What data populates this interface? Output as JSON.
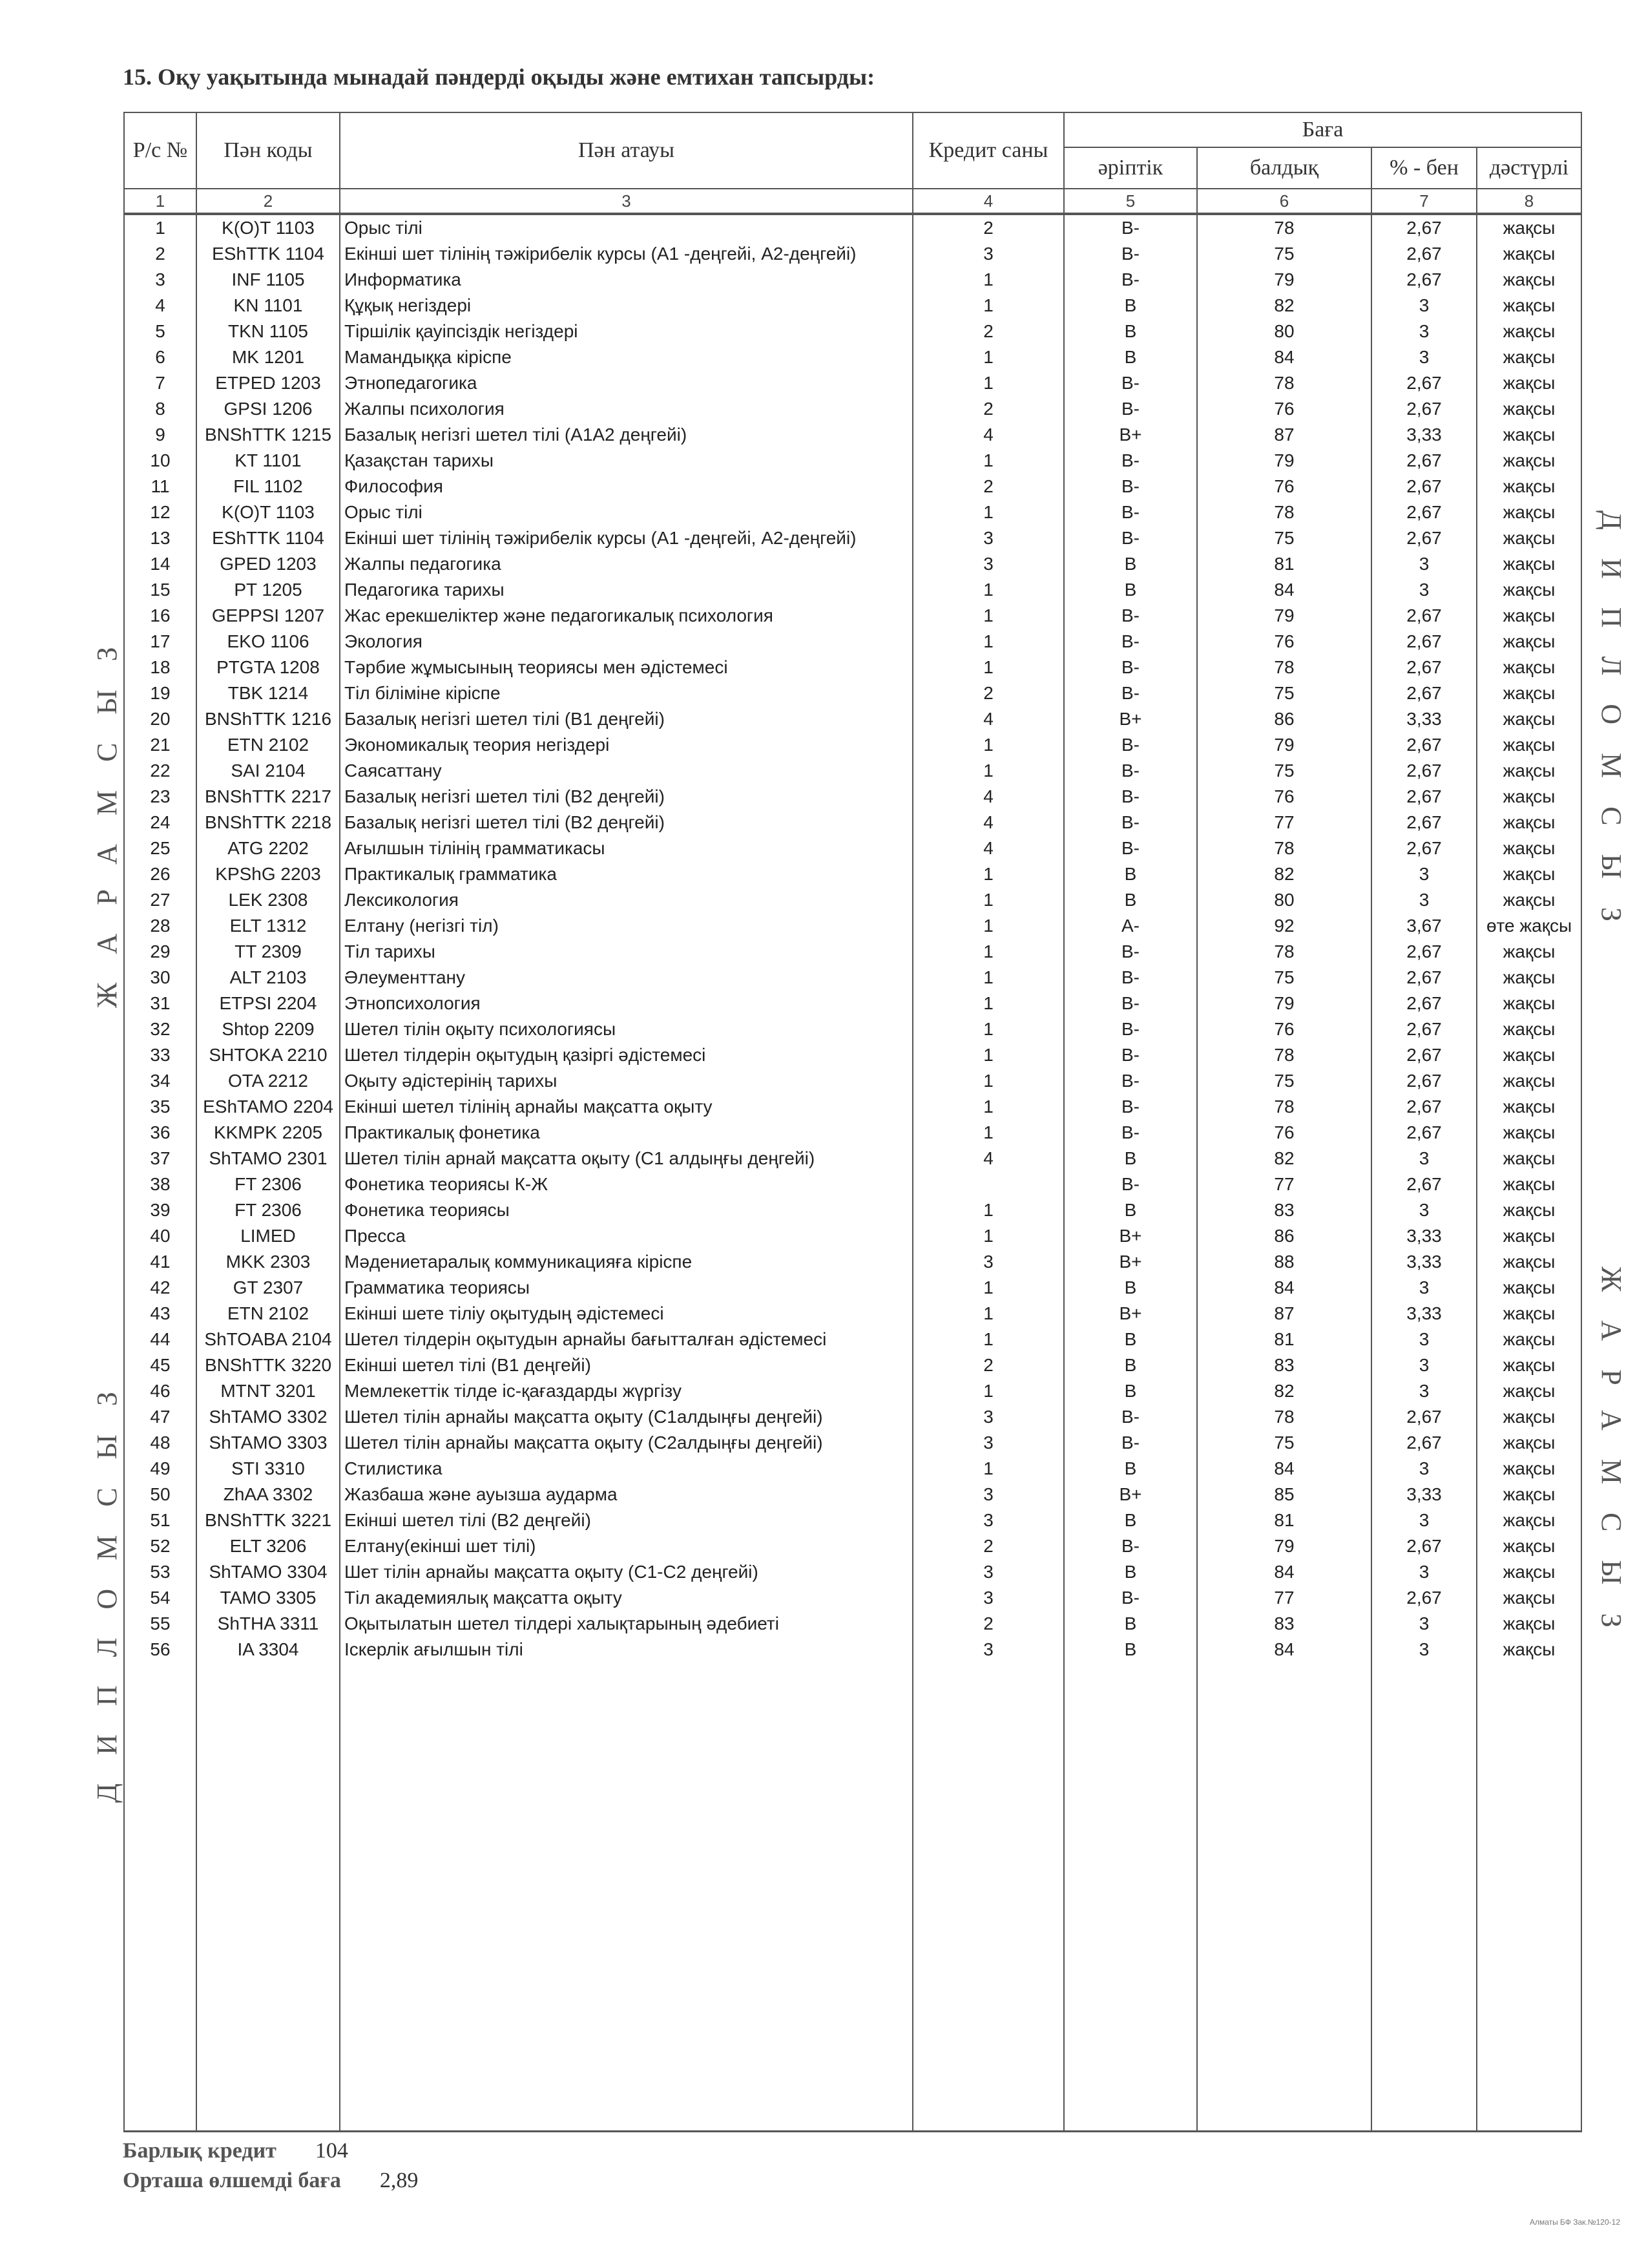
{
  "title": "15. Оқу уақытында мынадай пәндерді оқыды және емтихан тапсырды:",
  "headers": {
    "no": "Р/с №",
    "code": "Пән коды",
    "name": "Пән атауы",
    "credit": "Кредит саны",
    "grade": "Баға",
    "letter": "әріптік",
    "points": "балдық",
    "percent": "% - бен",
    "traditional": "дәстүрлі",
    "column_numbers": [
      "1",
      "2",
      "3",
      "4",
      "5",
      "6",
      "7",
      "8"
    ]
  },
  "rows": [
    [
      "1",
      "K(O)T 1103",
      "Орыс тілі",
      "2",
      "B-",
      "78",
      "2,67",
      "жақсы"
    ],
    [
      "2",
      "EShTTK 1104",
      "Екінші шет тілінің тәжірибелік курсы (А1 -деңгейі, А2-деңгейі)",
      "3",
      "B-",
      "75",
      "2,67",
      "жақсы"
    ],
    [
      "3",
      "INF 1105",
      "Информатика",
      "1",
      "B-",
      "79",
      "2,67",
      "жақсы"
    ],
    [
      "4",
      "KN 1101",
      "Құқық негіздері",
      "1",
      "B",
      "82",
      "3",
      "жақсы"
    ],
    [
      "5",
      "TKN 1105",
      "Тіршілік қауіпсіздік негіздері",
      "2",
      "B",
      "80",
      "3",
      "жақсы"
    ],
    [
      "6",
      "MK 1201",
      "Мамандыққа кіріспе",
      "1",
      "B",
      "84",
      "3",
      "жақсы"
    ],
    [
      "7",
      "ETPED 1203",
      "Этнопедагогика",
      "1",
      "B-",
      "78",
      "2,67",
      "жақсы"
    ],
    [
      "8",
      "GPSI 1206",
      "Жалпы психология",
      "2",
      "B-",
      "76",
      "2,67",
      "жақсы"
    ],
    [
      "9",
      "BNShTTK 1215",
      "Базалық негізгі шетел тілі (А1А2 деңгейі)",
      "4",
      "B+",
      "87",
      "3,33",
      "жақсы"
    ],
    [
      "10",
      "KT 1101",
      "Қазақстан тарихы",
      "1",
      "B-",
      "79",
      "2,67",
      "жақсы"
    ],
    [
      "11",
      "FIL 1102",
      "Философия",
      "2",
      "B-",
      "76",
      "2,67",
      "жақсы"
    ],
    [
      "12",
      "K(O)T 1103",
      "Орыс тілі",
      "1",
      "B-",
      "78",
      "2,67",
      "жақсы"
    ],
    [
      "13",
      "EShTTK 1104",
      "Екінші шет тілінің тәжірибелік курсы (А1 -деңгейі, А2-деңгейі)",
      "3",
      "B-",
      "75",
      "2,67",
      "жақсы"
    ],
    [
      "14",
      "GPED 1203",
      "Жалпы педагогика",
      "3",
      "B",
      "81",
      "3",
      "жақсы"
    ],
    [
      "15",
      "PT 1205",
      "Педагогика тарихы",
      "1",
      "B",
      "84",
      "3",
      "жақсы"
    ],
    [
      "16",
      "GEPPSI 1207",
      "Жас ерекшеліктер және педагогикалық психология",
      "1",
      "B-",
      "79",
      "2,67",
      "жақсы"
    ],
    [
      "17",
      "EKO 1106",
      "Экология",
      "1",
      "B-",
      "76",
      "2,67",
      "жақсы"
    ],
    [
      "18",
      "PTGTA 1208",
      "Тәрбие жұмысының теориясы мен әдістемесі",
      "1",
      "B-",
      "78",
      "2,67",
      "жақсы"
    ],
    [
      "19",
      "TBK 1214",
      "Тіл біліміне кіріспе",
      "2",
      "B-",
      "75",
      "2,67",
      "жақсы"
    ],
    [
      "20",
      "BNShTTK 1216",
      "Базалық негізгі шетел тілі (В1 деңгейі)",
      "4",
      "B+",
      "86",
      "3,33",
      "жақсы"
    ],
    [
      "21",
      "ETN 2102",
      "Экономикалық теория негіздері",
      "1",
      "B-",
      "79",
      "2,67",
      "жақсы"
    ],
    [
      "22",
      "SAI 2104",
      "Саясаттану",
      "1",
      "B-",
      "75",
      "2,67",
      "жақсы"
    ],
    [
      "23",
      "BNShTTK 2217",
      "Базалық негізгі шетел тілі (В2 деңгейі)",
      "4",
      "B-",
      "76",
      "2,67",
      "жақсы"
    ],
    [
      "24",
      "BNShTTK 2218",
      "Базалық негізгі шетел тілі (В2 деңгейі)",
      "4",
      "B-",
      "77",
      "2,67",
      "жақсы"
    ],
    [
      "25",
      "ATG 2202",
      "Ағылшын тілінің грамматикасы",
      "4",
      "B-",
      "78",
      "2,67",
      "жақсы"
    ],
    [
      "26",
      "KPShG 2203",
      "Практикалық грамматика",
      "1",
      "B",
      "82",
      "3",
      "жақсы"
    ],
    [
      "27",
      "LEK 2308",
      "Лексикология",
      "1",
      "B",
      "80",
      "3",
      "жақсы"
    ],
    [
      "28",
      "ELT 1312",
      "Елтану (негізгі тіл)",
      "1",
      "A-",
      "92",
      "3,67",
      "өте жақсы"
    ],
    [
      "29",
      "TT 2309",
      "Тіл тарихы",
      "1",
      "B-",
      "78",
      "2,67",
      "жақсы"
    ],
    [
      "30",
      "ALT 2103",
      "Әлеументтану",
      "1",
      "B-",
      "75",
      "2,67",
      "жақсы"
    ],
    [
      "31",
      "ETPSI 2204",
      "Этнопсихология",
      "1",
      "B-",
      "79",
      "2,67",
      "жақсы"
    ],
    [
      "32",
      "Shtop 2209",
      "Шетел тілін оқыту психологиясы",
      "1",
      "B-",
      "76",
      "2,67",
      "жақсы"
    ],
    [
      "33",
      "SHTOKA 2210",
      "Шетел тілдерін оқытудың қазіргі әдістемесі",
      "1",
      "B-",
      "78",
      "2,67",
      "жақсы"
    ],
    [
      "34",
      "OTA 2212",
      "Оқыту әдістерінің тарихы",
      "1",
      "B-",
      "75",
      "2,67",
      "жақсы"
    ],
    [
      "35",
      "EShTAMO 2204",
      "Екінші шетел тілінің арнайы мақсатта оқыту",
      "1",
      "B-",
      "78",
      "2,67",
      "жақсы"
    ],
    [
      "36",
      "KKMPK 2205",
      "Практикалық фонетика",
      "1",
      "B-",
      "76",
      "2,67",
      "жақсы"
    ],
    [
      "37",
      "ShTAMO 2301",
      "Шетел тілін арнай мақсатта оқыту (С1 алдыңғы деңгейі)",
      "4",
      "B",
      "82",
      "3",
      "жақсы"
    ],
    [
      "38",
      "FT 2306",
      "Фонетика теориясы К-Ж",
      "",
      "B-",
      "77",
      "2,67",
      "жақсы"
    ],
    [
      "39",
      "FT 2306",
      "Фонетика теориясы",
      "1",
      "B",
      "83",
      "3",
      "жақсы"
    ],
    [
      "40",
      "LIMED",
      "Пресса",
      "1",
      "B+",
      "86",
      "3,33",
      "жақсы"
    ],
    [
      "41",
      "MKK 2303",
      "Мәдениетаралық коммуникацияға кіріспе",
      "3",
      "B+",
      "88",
      "3,33",
      "жақсы"
    ],
    [
      "42",
      "GT 2307",
      "Грамматика теориясы",
      "1",
      "B",
      "84",
      "3",
      "жақсы"
    ],
    [
      "43",
      "ETN 2102",
      "Екінші шете тіліу оқытудың әдістемесі",
      "1",
      "B+",
      "87",
      "3,33",
      "жақсы"
    ],
    [
      "44",
      "ShTOABA 2104",
      "Шетел тілдерін оқытудын арнайы бағытталған әдістемесі",
      "1",
      "B",
      "81",
      "3",
      "жақсы"
    ],
    [
      "45",
      "BNShTTK 3220",
      "Екінші шетел тілі (В1 деңгейі)",
      "2",
      "B",
      "83",
      "3",
      "жақсы"
    ],
    [
      "46",
      "MTNT 3201",
      "Мемлекеттік тілде іс-қағаздарды жүргізу",
      "1",
      "B",
      "82",
      "3",
      "жақсы"
    ],
    [
      "47",
      "ShTAMO 3302",
      "Шетел тілін арнайы мақсатта оқыту (С1алдыңғы деңгейі)",
      "3",
      "B-",
      "78",
      "2,67",
      "жақсы"
    ],
    [
      "48",
      "ShTAMO 3303",
      "Шетел тілін арнайы мақсатта оқыту (С2алдыңғы деңгейі)",
      "3",
      "B-",
      "75",
      "2,67",
      "жақсы"
    ],
    [
      "49",
      "STI 3310",
      "Стилистика",
      "1",
      "B",
      "84",
      "3",
      "жақсы"
    ],
    [
      "50",
      "ZhAA 3302",
      "Жазбаша және ауызша аударма",
      "3",
      "B+",
      "85",
      "3,33",
      "жақсы"
    ],
    [
      "51",
      "BNShTTK 3221",
      "Екінші шетел тілі (В2 деңгейі)",
      "3",
      "B",
      "81",
      "3",
      "жақсы"
    ],
    [
      "52",
      "ELT 3206",
      "Елтану(екінші шет тілі)",
      "2",
      "B-",
      "79",
      "2,67",
      "жақсы"
    ],
    [
      "53",
      "ShTAMO 3304",
      "Шет тілін арнайы мақсатта оқыту (С1-С2 деңгейі)",
      "3",
      "B",
      "84",
      "3",
      "жақсы"
    ],
    [
      "54",
      "TAMO 3305",
      "Тіл академиялық мақсатта оқыту",
      "3",
      "B-",
      "77",
      "2,67",
      "жақсы"
    ],
    [
      "55",
      "ShTHA 3311",
      "Оқытылатын шетел тілдері халықтарының әдебиеті",
      "2",
      "B",
      "83",
      "3",
      "жақсы"
    ],
    [
      "56",
      "IA 3304",
      "Іскерлік ағылшын тілі",
      "3",
      "B",
      "84",
      "3",
      "жақсы"
    ]
  ],
  "summary": {
    "total_credit_label": "Барлық кредит",
    "total_credit": "104",
    "gpa_label": "Орташа өлшемді баға",
    "gpa": "2,89"
  },
  "watermarks": {
    "left_top": "ЖАРАМСЫЗ",
    "left_bottom": "ДИПЛОМСЫЗ",
    "right_top": "ДИПЛОМСЫЗ",
    "right_bottom": "ЖАРАМСЫЗ"
  },
  "print_note": "Алматы БФ Зак.№120-12"
}
